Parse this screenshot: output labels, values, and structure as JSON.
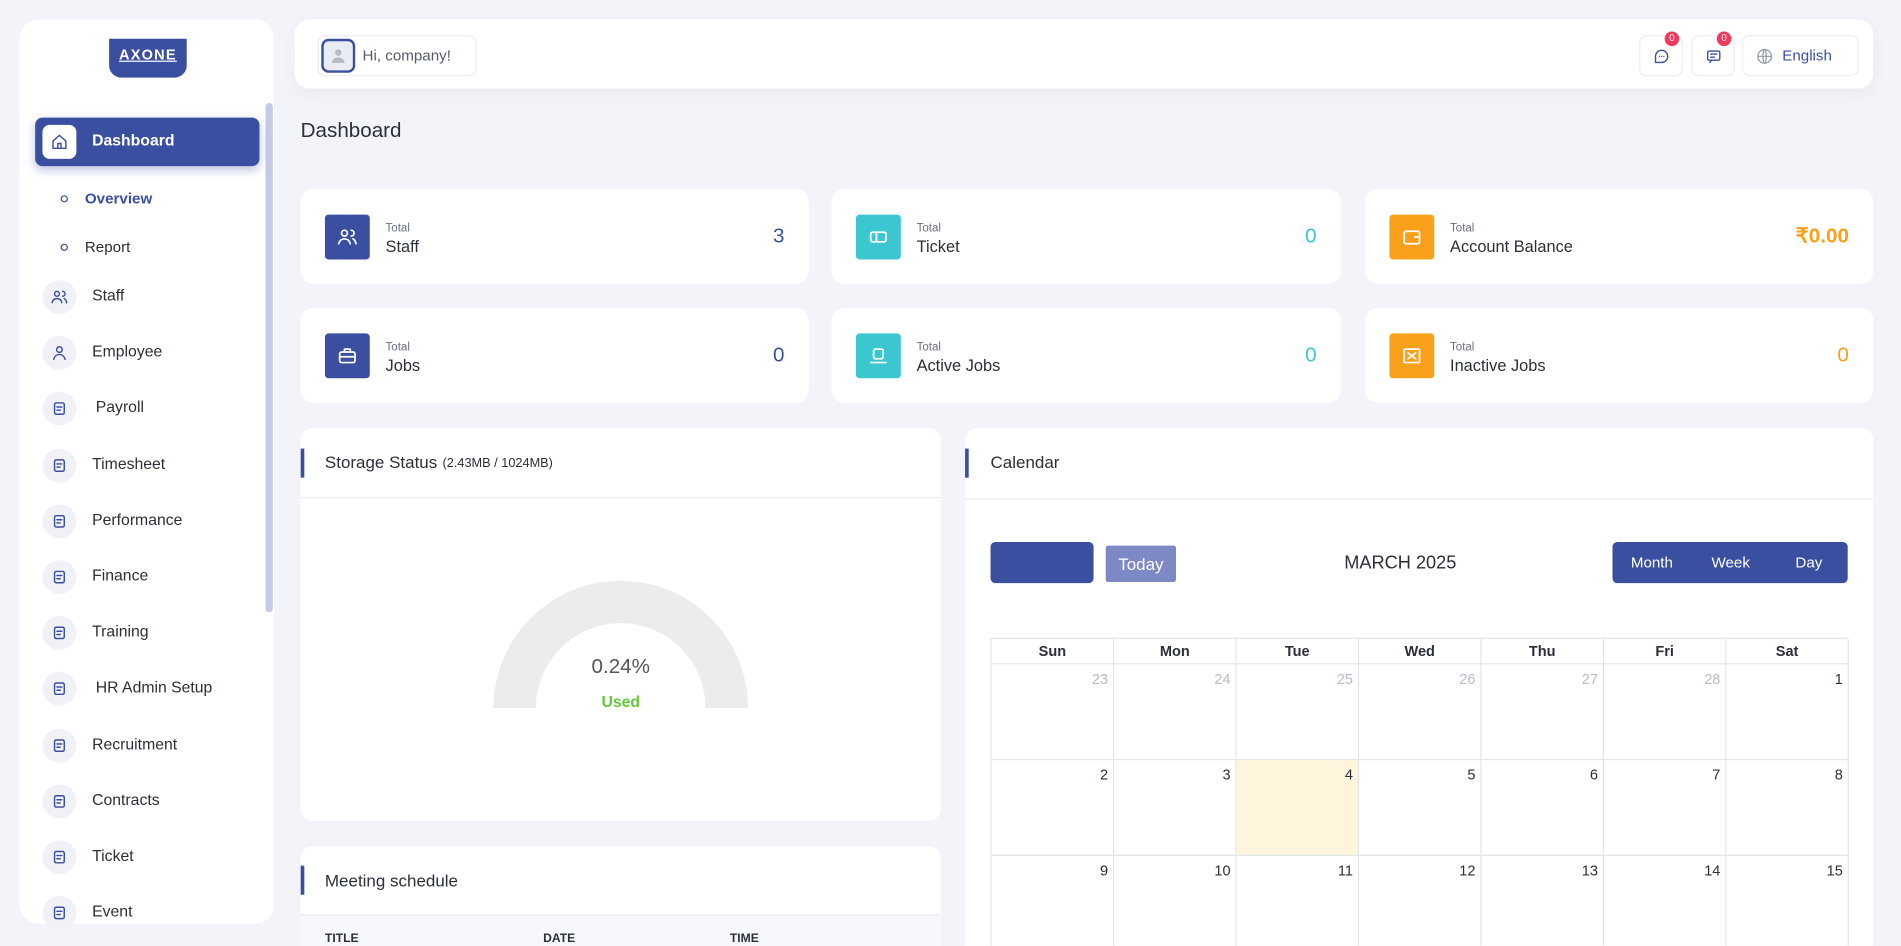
{
  "sidebar": {
    "logo": "AXONE",
    "menu": [
      "Dashboard",
      "Staff",
      "Employee",
      "Payroll",
      "Timesheet",
      "Performance",
      "Finance",
      "Training",
      "HR Admin Setup",
      "Recruitment",
      "Contracts",
      "Ticket",
      "Event"
    ],
    "submenu": [
      "Overview",
      "Report"
    ]
  },
  "header": {
    "greeting": "Hi, company!",
    "badges": [
      "0",
      "0"
    ],
    "language": "English"
  },
  "page_title": "Dashboard",
  "cards": [
    {
      "caption": "Total",
      "label": "Staff",
      "value": 3
    },
    {
      "caption": "Total",
      "label": "Ticket",
      "value": 0
    },
    {
      "caption": "Total",
      "label": "Account Balance",
      "value": "₹0.00"
    },
    {
      "caption": "Total",
      "label": "Jobs",
      "value": 0
    },
    {
      "caption": "Total",
      "label": "Active Jobs",
      "value": 0
    },
    {
      "caption": "Total",
      "label": "Inactive Jobs",
      "value": 0
    }
  ],
  "storage": {
    "title": "Storage Status",
    "detail": "(2.43MB / 1024MB)",
    "percent": "0.24%",
    "status": "Used"
  },
  "calendar": {
    "title": "Calendar",
    "today": "Today",
    "month": "MARCH 2025",
    "views": [
      "Month",
      "Week",
      "Day"
    ],
    "weekdays": [
      "Sun",
      "Mon",
      "Tue",
      "Wed",
      "Thu",
      "Fri",
      "Sat"
    ],
    "weeks": [
      [
        23,
        24,
        25,
        26,
        27,
        28,
        1
      ],
      [
        2,
        3,
        4,
        5,
        6,
        7,
        8
      ],
      [
        9,
        10,
        11,
        12,
        13,
        14,
        15
      ]
    ]
  },
  "meeting": {
    "title": "Meeting schedule",
    "columns": [
      "TITLE",
      "DATE",
      "TIME"
    ]
  }
}
